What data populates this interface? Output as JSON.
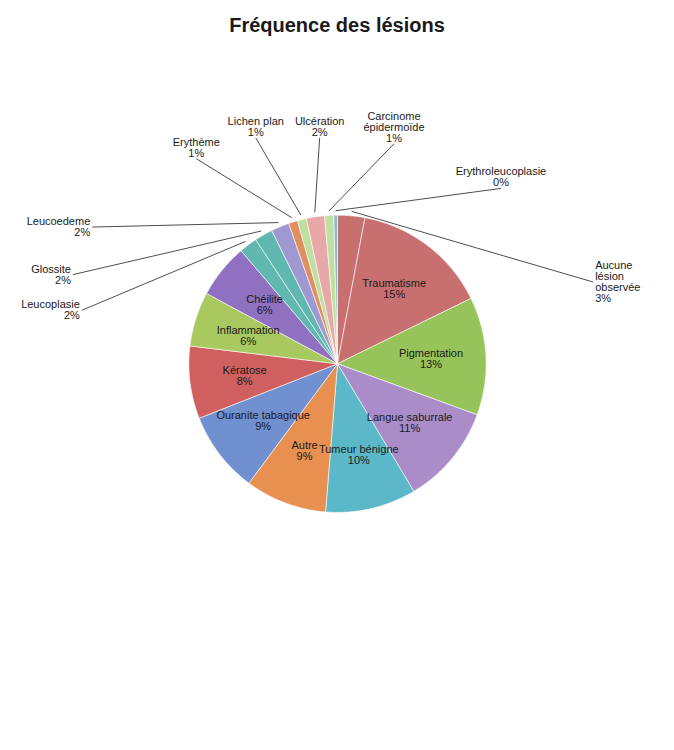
{
  "chart_data": {
    "type": "pie",
    "title": "Fréquence des lésions",
    "categories": [
      "Aucune\nlésion\nobservée",
      "Traumatisme",
      "Pigmentation",
      "Langue saburrale",
      "Tumeur bénigne",
      "Autre",
      "Ouranite tabagique",
      "Kératose",
      "Inflammation",
      "Chéilite",
      "Leucoplasie",
      "Glossite",
      "Leucoedeme",
      "Erythème",
      "Lichen plan",
      "Ulcération",
      "Carcinome\népidermoïde",
      "Erythroleucoplasie"
    ],
    "values": [
      3,
      15,
      13,
      11,
      10,
      9,
      9,
      8,
      6,
      6,
      2,
      2,
      2,
      1,
      1,
      2,
      1,
      0.4
    ],
    "value_labels": [
      "3%",
      "15%",
      "13%",
      "11%",
      "10%",
      "9%",
      "9%",
      "8%",
      "6%",
      "6%",
      "2%",
      "2%",
      "2%",
      "1%",
      "1%",
      "2%",
      "1%",
      "0%"
    ],
    "colors": [
      "#c87070",
      "#c87070",
      "#96c45a",
      "#a98cc8",
      "#5ab8c8",
      "#e89050",
      "#7090d0",
      "#d06060",
      "#a8c860",
      "#9070c0",
      "#60b8b0",
      "#60b8b0",
      "#a098d0",
      "#e09060",
      "#c0dfa0",
      "#e8a8a8",
      "#c0dfa0",
      "#80c0d0"
    ],
    "data_labels": true
  }
}
